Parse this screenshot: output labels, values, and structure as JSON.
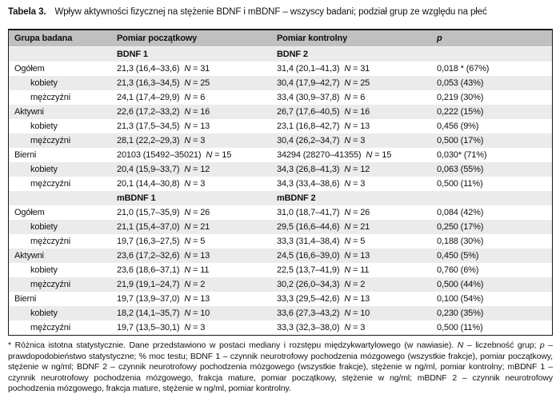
{
  "title": {
    "label": "Tabela 3.",
    "text": "Wpływ aktywności fizycznej na stężenie BDNF i mBDNF – wszyscy badani; podział grup ze względu na płeć"
  },
  "colors": {
    "header_bg": "#c0c0c0",
    "stripe_bg": "#ebebeb",
    "border": "#1a1a1a"
  },
  "table": {
    "columns": [
      "Grupa badana",
      "Pomiar początkowy",
      "Pomiar kontrolny",
      "p"
    ],
    "rows": [
      {
        "type": "subheader",
        "col2": "BDNF 1",
        "col3": "BDNF 2"
      },
      {
        "type": "data",
        "label": "Ogółem",
        "indent": false,
        "m1": "21,3 (16,4–33,6)",
        "n1": "N = 31",
        "m2": "31,4 (20,1–41,3)",
        "n2": "N = 31",
        "p": "0,018 * (67%)"
      },
      {
        "type": "data",
        "label": "kobiety",
        "indent": true,
        "m1": "21,3 (16,3–34,5)",
        "n1": "N = 25",
        "m2": "30,4 (17,9–42,7)",
        "n2": "N = 25",
        "p": "0,053 (43%)"
      },
      {
        "type": "data",
        "label": "mężczyźni",
        "indent": true,
        "m1": "24,1 (17,4–29,9)",
        "n1": "N = 6",
        "m2": "33,4 (30,9–37,8)",
        "n2": "N = 6",
        "p": "0,219 (30%)"
      },
      {
        "type": "data",
        "label": "Aktywni",
        "indent": false,
        "m1": "22,6 (17,2–33,2)",
        "n1": "N = 16",
        "m2": "26,7 (17,6–40,5)",
        "n2": "N = 16",
        "p": "0,222 (15%)"
      },
      {
        "type": "data",
        "label": "kobiety",
        "indent": true,
        "m1": "21,3 (17,5–34,5)",
        "n1": "N = 13",
        "m2": "23,1 (16,8–42,7)",
        "n2": "N = 13",
        "p": "0,456 (9%)"
      },
      {
        "type": "data",
        "label": "mężczyźni",
        "indent": true,
        "m1": "28,1 (22,2–29,3)",
        "n1": "N = 3",
        "m2": "30,4 (26,2–34,7)",
        "n2": "N = 3",
        "p": "0,500 (17%)"
      },
      {
        "type": "data",
        "label": "Bierni",
        "indent": false,
        "m1": "20103 (15492–35021)",
        "n1": "N = 15",
        "m2": "34294 (28270–41355)",
        "n2": "N = 15",
        "p": "0,030* (71%)"
      },
      {
        "type": "data",
        "label": "kobiety",
        "indent": true,
        "m1": "20,4 (15,9–33,7)",
        "n1": "N = 12",
        "m2": "34,3 (26,8–41,3)",
        "n2": "N = 12",
        "p": "0,063 (55%)"
      },
      {
        "type": "data",
        "label": "mężczyźni",
        "indent": true,
        "m1": "20,1 (14,4–30,8)",
        "n1": "N = 3",
        "m2": "34,3 (33,4–38,6)",
        "n2": "N = 3",
        "p": "0,500 (11%)"
      },
      {
        "type": "subheader",
        "col2": "mBDNF 1",
        "col3": "mBDNF 2"
      },
      {
        "type": "data",
        "label": "Ogółem",
        "indent": false,
        "m1": "21,0 (15,7–35,9)",
        "n1": "N = 26",
        "m2": "31,0 (18,7–41,7)",
        "n2": "N = 26",
        "p": "0,084 (42%)"
      },
      {
        "type": "data",
        "label": "kobiety",
        "indent": true,
        "m1": "21,1 (15,4–37,0)",
        "n1": "N = 21",
        "m2": "29,5 (16,6–44,6)",
        "n2": "N = 21",
        "p": "0,250 (17%)"
      },
      {
        "type": "data",
        "label": "mężczyźni",
        "indent": true,
        "m1": "19,7 (16,3–27,5)",
        "n1": "N = 5",
        "m2": "33,3 (31,4–38,4)",
        "n2": "N = 5",
        "p": "0,188 (30%)"
      },
      {
        "type": "data",
        "label": "Aktywni",
        "indent": false,
        "m1": "23,6 (17,2–32,6)",
        "n1": "N = 13",
        "m2": "24,5 (16,6–39,0)",
        "n2": "N = 13",
        "p": "0,450 (5%)"
      },
      {
        "type": "data",
        "label": "kobiety",
        "indent": true,
        "m1": "23,6 (18,6–37,1)",
        "n1": "N = 11",
        "m2": "22,5 (13,7–41,9)",
        "n2": "N = 11",
        "p": "0,760 (6%)"
      },
      {
        "type": "data",
        "label": "mężczyźni",
        "indent": true,
        "m1": "21,9 (19,1–24,7)",
        "n1": "N = 2",
        "m2": "30,2 (26,0–34,3)",
        "n2": "N = 2",
        "p": "0,500 (44%)"
      },
      {
        "type": "data",
        "label": "Bierni",
        "indent": false,
        "m1": "19,7 (13,9–37,0)",
        "n1": "N = 13",
        "m2": "33,3 (29,5–42,6)",
        "n2": "N = 13",
        "p": "0,100 (54%)"
      },
      {
        "type": "data",
        "label": "kobiety",
        "indent": true,
        "m1": "18,2 (14,1–35,7)",
        "n1": "N = 10",
        "m2": "33,6 (27,3–43,2)",
        "n2": "N = 10",
        "p": "0,230 (35%)"
      },
      {
        "type": "data",
        "label": "mężczyźni",
        "indent": true,
        "m1": "19,7 (13,5–30,1)",
        "n1": "N = 3",
        "m2": "33,3 (32,3–38,0)",
        "n2": "N = 3",
        "p": "0,500 (11%)"
      }
    ]
  },
  "footnote": {
    "segments": [
      {
        "text": "* Różnica istotna statystycznie. Dane przedstawiono w postaci mediany i rozstępu międzykwartylowego (w nawiasie). ",
        "italic": false
      },
      {
        "text": "N",
        "italic": true
      },
      {
        "text": " – liczebność grup; ",
        "italic": false
      },
      {
        "text": "p",
        "italic": true
      },
      {
        "text": " – prawdopodobieństwo statystyczne; % moc testu; BDNF 1 – czynnik neurotrofowy pochodzenia mózgowego (wszystkie frakcje), pomiar początkowy, stężenie w ng/ml; BDNF 2 – czynnik neurotrofowy pochodzenia mózgowego (wszystkie frakcje), stężenie w ng/ml, pomiar kontrolny; mBDNF 1 – czynnik neurotrofowy pochodzenia mózgowego, frakcja mature, pomiar początkowy, stężenie w ng/ml; mBDNF 2 – czynnik neurotrofowy pochodzenia mózgowego, frakcja mature, stężenie w ng/ml, pomiar kontrolny.",
        "italic": false
      }
    ]
  }
}
